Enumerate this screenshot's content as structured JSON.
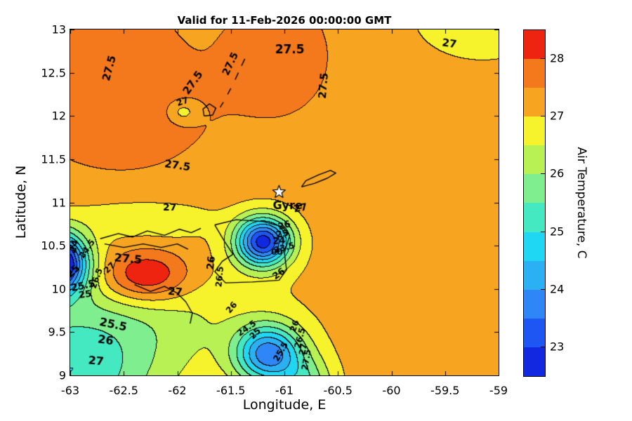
{
  "chart_data": {
    "type": "heatmap",
    "subtype": "filled-contour-map",
    "title": "Valid for 11-Feb-2026 00:00:00 GMT",
    "xlabel": "Longitude, E",
    "ylabel": "Latitude, N",
    "xlim": [
      -63,
      -59
    ],
    "ylim": [
      9,
      13
    ],
    "xticks": [
      -63,
      -62.5,
      -62,
      -61.5,
      -61,
      -60.5,
      -60,
      -59.5,
      -59
    ],
    "yticks": [
      9,
      9.5,
      10,
      10.5,
      11,
      11.5,
      12,
      12.5,
      13
    ],
    "grid": false,
    "legend_position": "colorbar-right",
    "contour_interval": 0.5,
    "colorbar": {
      "label": "Air Temperature, C",
      "min": 22.5,
      "max": 28.5,
      "step": 0.5,
      "ticks": [
        23,
        24,
        25,
        26,
        27,
        28
      ],
      "colors": [
        "#1227e0",
        "#1e56f4",
        "#2e86f7",
        "#2cb0f4",
        "#1fd7f2",
        "#44e8c1",
        "#7eee8e",
        "#b7f154",
        "#f6f32c",
        "#f7a521",
        "#f4791c",
        "#ef2410"
      ]
    },
    "field": {
      "base": 27.2,
      "gaussians": [
        {
          "lon": -62.85,
          "lat": 12.85,
          "amp": 0.55,
          "sx": 0.65,
          "sy": 0.75
        },
        {
          "lon": -62.45,
          "lat": 11.95,
          "amp": 0.45,
          "sx": 0.6,
          "sy": 0.5
        },
        {
          "lon": -61.95,
          "lat": 12.05,
          "amp": -0.75,
          "sx": 0.1,
          "sy": 0.09
        },
        {
          "lon": -61.05,
          "lat": 12.7,
          "amp": 0.6,
          "sx": 0.38,
          "sy": 0.55
        },
        {
          "lon": -59.15,
          "lat": 13.15,
          "amp": -0.55,
          "sx": 0.45,
          "sy": 0.35
        },
        {
          "lon": -62.3,
          "lat": 10.15,
          "amp": 1.8,
          "sx": 0.3,
          "sy": 0.22
        },
        {
          "lon": -63.15,
          "lat": 10.3,
          "amp": -5.8,
          "sx": 0.2,
          "sy": 0.24
        },
        {
          "lon": -61.2,
          "lat": 10.55,
          "amp": -4.4,
          "sx": 0.18,
          "sy": 0.2
        },
        {
          "lon": -61.15,
          "lat": 9.25,
          "amp": -3.4,
          "sx": 0.22,
          "sy": 0.24
        },
        {
          "lon": -63.05,
          "lat": 8.95,
          "amp": -1.9,
          "sx": 0.6,
          "sy": 0.5
        },
        {
          "lon": -62.5,
          "lat": 9.7,
          "amp": -0.95,
          "sx": 0.85,
          "sy": 0.5
        },
        {
          "lon": -62.35,
          "lat": 10.82,
          "amp": -0.5,
          "sx": 0.5,
          "sy": 0.16
        },
        {
          "lon": -62.05,
          "lat": 10.75,
          "amp": -0.2,
          "sx": 0.1,
          "sy": 0.08
        },
        {
          "lon": -60.8,
          "lat": 8.85,
          "amp": -1.5,
          "sx": 0.18,
          "sy": 0.25
        }
      ]
    },
    "marker": {
      "lon": -61.05,
      "lat": 11.12,
      "symbol": "star",
      "label": "Gyre",
      "label_lon": -60.97,
      "label_lat": 10.96
    },
    "contour_labels": [
      {
        "lon": -62.63,
        "lat": 12.55,
        "text": "27.5",
        "rot": -75,
        "size": 15
      },
      {
        "lon": -61.85,
        "lat": 12.38,
        "text": "27.5",
        "rot": -55,
        "size": 15
      },
      {
        "lon": -61.95,
        "lat": 12.16,
        "text": "27",
        "rot": -20,
        "size": 12
      },
      {
        "lon": -61.5,
        "lat": 12.6,
        "text": "27.5",
        "rot": -65,
        "size": 14
      },
      {
        "lon": -60.95,
        "lat": 12.76,
        "text": "27.5",
        "rot": 0,
        "size": 17
      },
      {
        "lon": -60.63,
        "lat": 12.35,
        "text": "27.5",
        "rot": -85,
        "size": 15
      },
      {
        "lon": -59.46,
        "lat": 12.83,
        "text": "27",
        "rot": 8,
        "size": 15
      },
      {
        "lon": -62.0,
        "lat": 11.42,
        "text": "27.5",
        "rot": 8,
        "size": 15
      },
      {
        "lon": -62.07,
        "lat": 10.94,
        "text": "27",
        "rot": 0,
        "size": 14
      },
      {
        "lon": -60.85,
        "lat": 10.93,
        "text": "27",
        "rot": -10,
        "size": 14
      },
      {
        "lon": -61.0,
        "lat": 10.73,
        "text": "26",
        "rot": -15,
        "size": 13
      },
      {
        "lon": -61.02,
        "lat": 10.63,
        "text": "25",
        "rot": -10,
        "size": 13
      },
      {
        "lon": -61.05,
        "lat": 10.55,
        "text": "24",
        "rot": -5,
        "size": 13
      },
      {
        "lon": -61.0,
        "lat": 10.47,
        "text": "23.5",
        "rot": -15,
        "size": 12
      },
      {
        "lon": -61.07,
        "lat": 10.42,
        "text": "00",
        "rot": 0,
        "size": 12
      },
      {
        "lon": -61.05,
        "lat": 10.17,
        "text": "26",
        "rot": -35,
        "size": 13
      },
      {
        "lon": -62.96,
        "lat": 10.49,
        "text": "24",
        "rot": -75,
        "size": 14
      },
      {
        "lon": -62.84,
        "lat": 10.46,
        "text": "24.5",
        "rot": -55,
        "size": 12
      },
      {
        "lon": -62.97,
        "lat": 10.2,
        "text": "25",
        "rot": -45,
        "size": 14
      },
      {
        "lon": -62.75,
        "lat": 10.12,
        "text": "26.5",
        "rot": -70,
        "size": 12
      },
      {
        "lon": -62.88,
        "lat": 10.03,
        "text": "25.5",
        "rot": -12,
        "size": 14
      },
      {
        "lon": -62.86,
        "lat": 9.93,
        "text": "25",
        "rot": -8,
        "size": 13
      },
      {
        "lon": -62.46,
        "lat": 10.34,
        "text": "27.5",
        "rot": 5,
        "size": 16
      },
      {
        "lon": -62.63,
        "lat": 10.24,
        "text": "27",
        "rot": -45,
        "size": 12
      },
      {
        "lon": -61.68,
        "lat": 10.3,
        "text": "26",
        "rot": -85,
        "size": 14
      },
      {
        "lon": -61.6,
        "lat": 10.14,
        "text": "26.5",
        "rot": -85,
        "size": 12
      },
      {
        "lon": -62.02,
        "lat": 9.96,
        "text": "27",
        "rot": 5,
        "size": 15
      },
      {
        "lon": -62.6,
        "lat": 9.58,
        "text": "25.5",
        "rot": 12,
        "size": 16
      },
      {
        "lon": -62.67,
        "lat": 9.4,
        "text": "26",
        "rot": 8,
        "size": 16
      },
      {
        "lon": -62.76,
        "lat": 9.16,
        "text": "27",
        "rot": 5,
        "size": 16
      },
      {
        "lon": -61.49,
        "lat": 9.78,
        "text": "26",
        "rot": -50,
        "size": 12
      },
      {
        "lon": -61.35,
        "lat": 9.54,
        "text": "24.5",
        "rot": -35,
        "size": 12
      },
      {
        "lon": -61.27,
        "lat": 9.48,
        "text": "25",
        "rot": -45,
        "size": 12
      },
      {
        "lon": -61.03,
        "lat": 9.27,
        "text": "25.5",
        "rot": -60,
        "size": 12
      },
      {
        "lon": -60.9,
        "lat": 9.57,
        "text": "26",
        "rot": -70,
        "size": 12
      },
      {
        "lon": -60.85,
        "lat": 9.43,
        "text": "26.5",
        "rot": -75,
        "size": 12
      },
      {
        "lon": -60.82,
        "lat": 9.3,
        "text": "27",
        "rot": -78,
        "size": 12
      },
      {
        "lon": -60.79,
        "lat": 9.18,
        "text": "27.5",
        "rot": -80,
        "size": 12
      }
    ],
    "coastlines": [
      [
        [
          -62.72,
          10.58
        ],
        [
          -62.55,
          10.64
        ],
        [
          -62.42,
          10.6
        ],
        [
          -62.28,
          10.67
        ],
        [
          -62.12,
          10.62
        ],
        [
          -61.98,
          10.69
        ],
        [
          -61.87,
          10.65
        ],
        [
          -61.78,
          10.7
        ]
      ],
      [
        [
          -62.68,
          10.52
        ],
        [
          -62.5,
          10.48
        ],
        [
          -62.32,
          10.52
        ],
        [
          -62.15,
          10.48
        ],
        [
          -62.0,
          10.52
        ],
        [
          -61.9,
          10.46
        ]
      ],
      [
        [
          -62.4,
          10.05
        ],
        [
          -62.25,
          9.97
        ],
        [
          -62.12,
          10.03
        ],
        [
          -62.0,
          9.95
        ],
        [
          -61.92,
          9.85
        ],
        [
          -61.86,
          9.72
        ],
        [
          -61.88,
          9.6
        ]
      ],
      [
        [
          -61.65,
          10.74
        ],
        [
          -61.45,
          10.8
        ],
        [
          -61.2,
          10.78
        ],
        [
          -61.02,
          10.72
        ],
        [
          -60.95,
          10.62
        ],
        [
          -61.0,
          10.42
        ],
        [
          -60.98,
          10.22
        ],
        [
          -61.05,
          10.1
        ],
        [
          -61.3,
          10.08
        ],
        [
          -61.55,
          10.07
        ],
        [
          -61.65,
          10.2
        ],
        [
          -61.58,
          10.32
        ],
        [
          -61.48,
          10.4
        ],
        [
          -61.56,
          10.55
        ],
        [
          -61.65,
          10.74
        ]
      ],
      [
        [
          -60.84,
          11.18
        ],
        [
          -60.72,
          11.22
        ],
        [
          -60.6,
          11.28
        ],
        [
          -60.52,
          11.34
        ],
        [
          -60.57,
          11.37
        ],
        [
          -60.68,
          11.32
        ],
        [
          -60.8,
          11.25
        ],
        [
          -60.84,
          11.18
        ]
      ],
      [
        [
          -61.75,
          12.0
        ],
        [
          -61.67,
          12.01
        ],
        [
          -61.64,
          12.09
        ],
        [
          -61.7,
          12.14
        ],
        [
          -61.76,
          12.08
        ],
        [
          -61.75,
          12.0
        ]
      ],
      [
        [
          -61.6,
          12.1
        ],
        [
          -61.57,
          12.16
        ]
      ],
      [
        [
          -61.53,
          12.25
        ],
        [
          -61.5,
          12.32
        ]
      ],
      [
        [
          -61.46,
          12.42
        ],
        [
          -61.43,
          12.5
        ]
      ],
      [
        [
          -61.4,
          12.58
        ],
        [
          -61.37,
          12.66
        ]
      ]
    ]
  }
}
